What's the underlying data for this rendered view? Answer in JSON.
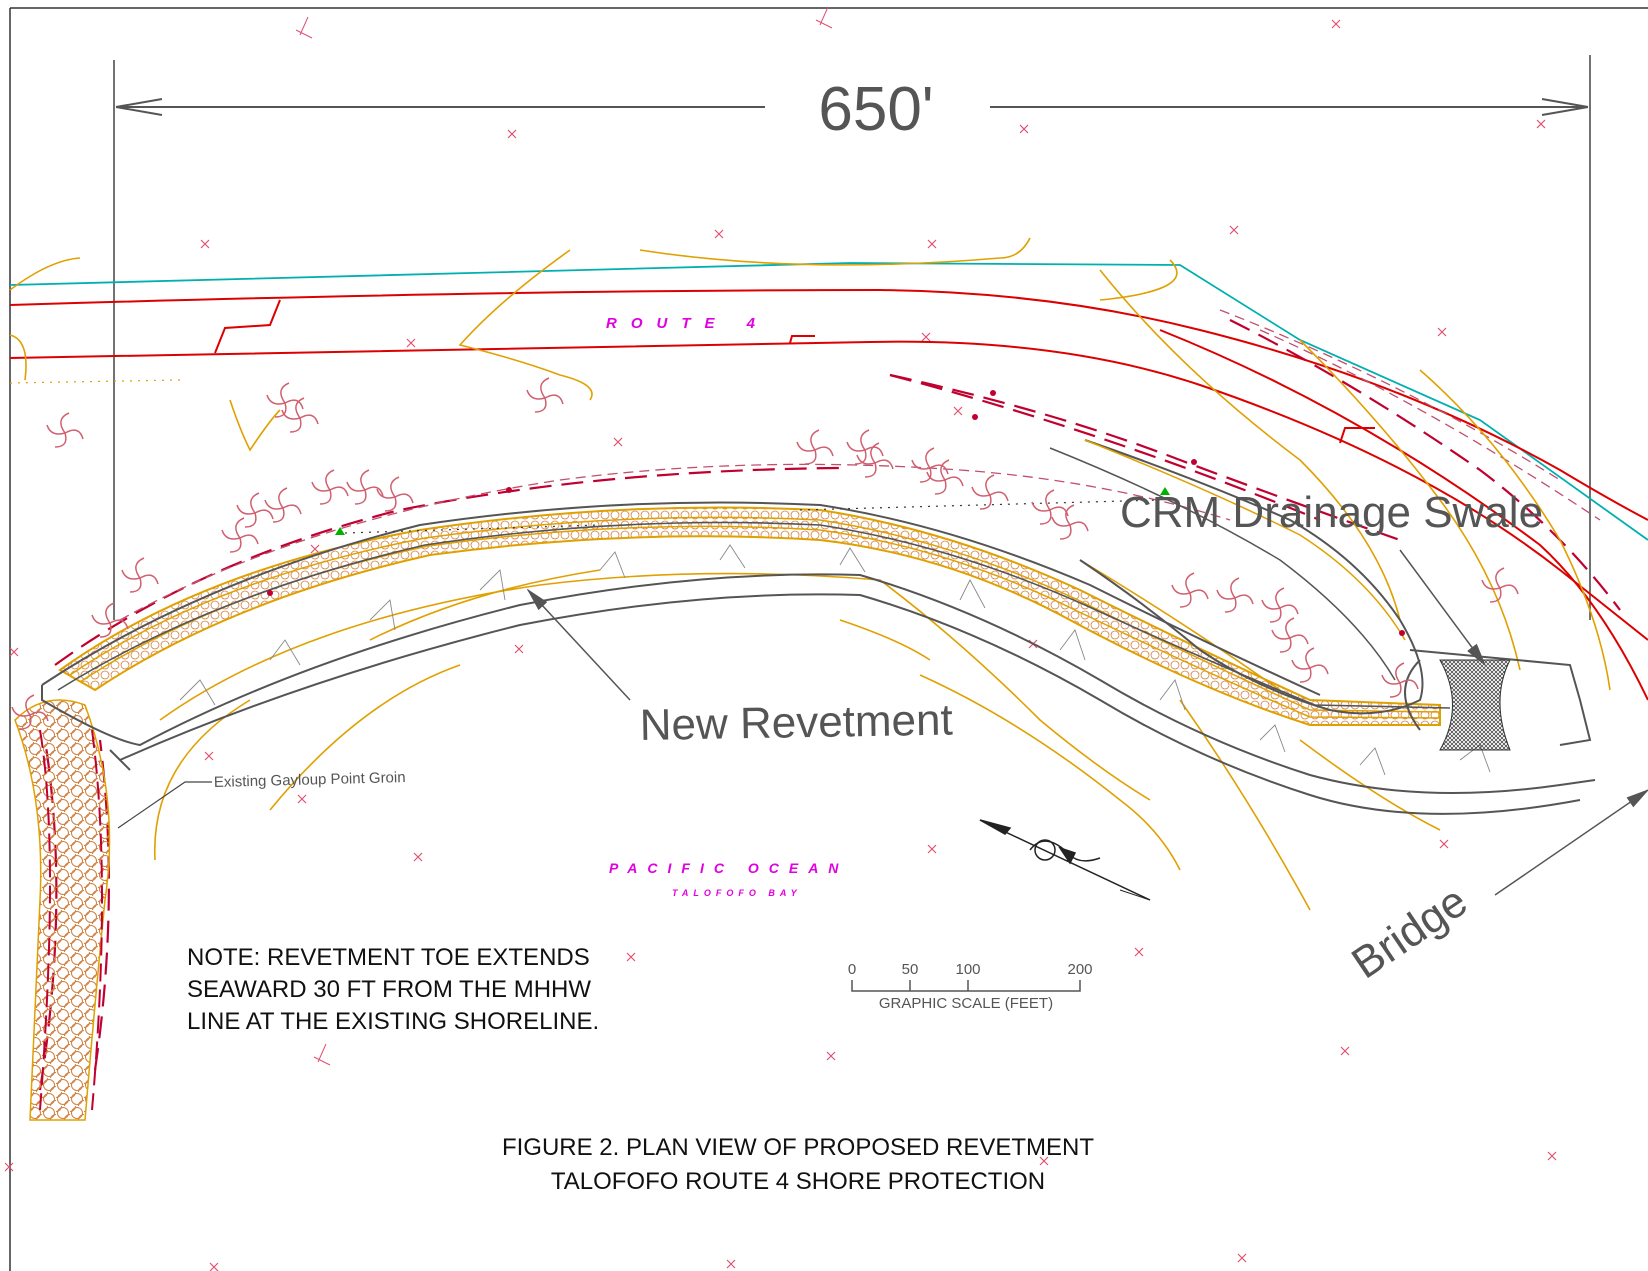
{
  "dimension": {
    "label": "650'"
  },
  "labels": {
    "route": "ROUTE 4",
    "ocean": "PACIFIC OCEAN",
    "bay": "TALOFOFO BAY",
    "crm_swale": "CRM Drainage Swale",
    "new_revetment": "New Revetment",
    "existing_groin": "Existing Gayloup Point Groin",
    "bridge": "Bridge"
  },
  "note": {
    "lines": [
      "NOTE:  REVETMENT TOE EXTENDS",
      "SEAWARD 30 FT FROM THE MHHW",
      "LINE AT THE EXISTING SHORELINE."
    ]
  },
  "scale": {
    "ticks": [
      "0",
      "50",
      "100",
      "200"
    ],
    "title": "GRAPHIC SCALE (FEET)"
  },
  "figure": {
    "title_line1": "FIGURE 2.  PLAN VIEW OF PROPOSED REVETMENT",
    "title_line2": "TALOFOFO ROUTE 4 SHORE PROTECTION"
  },
  "colors": {
    "road": "#dd0000",
    "contour": "#e0a000",
    "utility": "#00b0b0",
    "revetment": "#555555",
    "annotation": "#e000e0",
    "rock": "#d08040"
  }
}
